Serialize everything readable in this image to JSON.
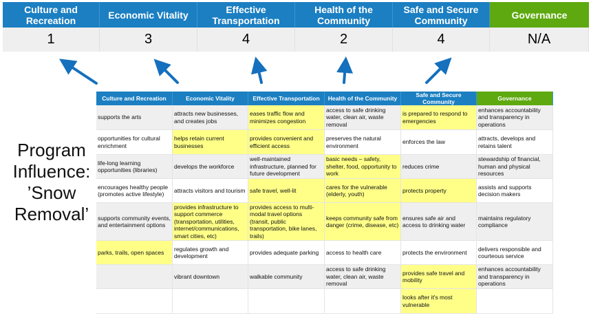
{
  "summary": {
    "headers": [
      "Culture and Recreation",
      "Economic Vitality",
      "Effective Transportation",
      "Health of the Community",
      "Safe and Secure Community",
      "Governance"
    ],
    "scores": [
      "1",
      "3",
      "4",
      "2",
      "4",
      "N/A"
    ]
  },
  "program_label": "Program Influence: ’Snow Removal’",
  "colors": {
    "header_blue": "#1b7fc2",
    "governance_green": "#5ea90f",
    "highlight_yellow": "#ffff88",
    "arrow_blue": "#1570bd"
  },
  "table": {
    "headers": [
      "Culture and Recreation",
      "Economic Vitality",
      "Effective Transportation",
      "Health of the Community",
      "Safe and Secure Community",
      "Governance"
    ],
    "rows": [
      [
        "supports the arts",
        "attracts new businesses, and creates jobs",
        "eases traffic flow and minimizes congestion",
        "access to safe drinking water, clean air, waste removal",
        "is prepared to respond to emergencies",
        "enhances accountability and transparency in operations"
      ],
      [
        "opportunities for cultural enrichment",
        "helps retain current businesses",
        "provides convenient and efficient access",
        "preserves the natural environment",
        "enforces the law",
        "attracts, develops and retains talent"
      ],
      [
        "life-long learning opportunities (libraries)",
        "develops the workforce",
        "well-maintained infrastructure, planned for future development",
        "basic needs – safety, shelter, food, opportunity to work",
        "reduces crime",
        "stewardship of financial, human and physical resources"
      ],
      [
        "encourages healthy people (promotes active lifestyle)",
        "attracts visitors and tourism",
        "safe travel, well-lit",
        "cares for the vulnerable (elderly, youth)",
        "protects property",
        "assists and supports decision makers"
      ],
      [
        "supports community events, and entertainment options",
        "provides infrastructure to support commerce (transportation, utilities, internet/communications, smart cities, etc)",
        "provides access to multi-modal travel options (transit, public transportation, bike lanes, trails)",
        "keeps community safe from danger (crime, disease, etc)",
        "ensures safe air and access to drinking water",
        "maintains regulatory compliance"
      ],
      [
        "parks, trails, open spaces",
        "regulates growth and development",
        "provides adequate parking",
        "access to health care",
        "protects the environment",
        "delivers responsible and courteous service"
      ],
      [
        "",
        "vibrant downtown",
        "walkable community",
        "access to safe drinking water, clean air, waste removal",
        "provides safe travel and mobility",
        "enhances accountability and transparency in operations"
      ],
      [
        "",
        "",
        "",
        "",
        "looks after it's most vulnerable",
        ""
      ]
    ],
    "highlighted": [
      [
        2,
        4
      ],
      [
        1,
        2
      ],
      [
        3
      ],
      [
        2,
        3,
        4
      ],
      [
        1,
        2,
        3
      ],
      [
        0
      ],
      [
        4
      ],
      [
        4
      ]
    ]
  }
}
